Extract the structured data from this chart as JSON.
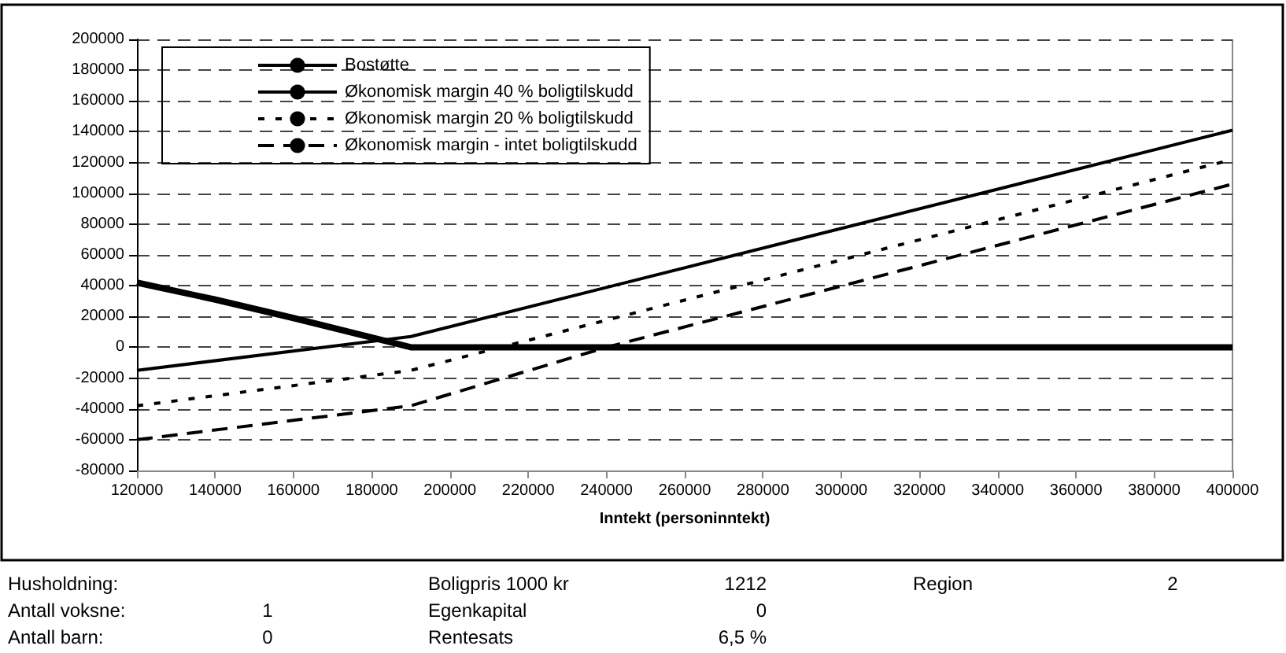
{
  "chart_data": {
    "type": "line",
    "xlabel": "Inntekt (personinntekt)",
    "series": [
      {
        "name": "Bostøtte",
        "color": "#000000",
        "line_style": "solid",
        "x": [
          120000,
          140000,
          160000,
          190000,
          400000
        ],
        "values": [
          42000,
          31000,
          19000,
          0,
          0
        ]
      },
      {
        "name": "Økonomisk margin 40 % boligtilskudd",
        "color": "#000000",
        "line_style": "solid",
        "x": [
          120000,
          190000,
          400000
        ],
        "values": [
          -15000,
          7000,
          141000
        ]
      },
      {
        "name": "Økonomisk margin 20 % boligtilskudd",
        "color": "#000000",
        "line_style": "dotted",
        "x": [
          120000,
          190000,
          400000
        ],
        "values": [
          -38000,
          -15000,
          122000
        ]
      },
      {
        "name": "Økonomisk margin - intet boligtilskudd",
        "color": "#000000",
        "line_style": "dashed",
        "x": [
          120000,
          190000,
          240000,
          400000
        ],
        "values": [
          -60000,
          -38000,
          0,
          106000
        ]
      }
    ],
    "xlim": [
      120000,
      400000
    ],
    "xticks": [
      120000,
      140000,
      160000,
      180000,
      200000,
      220000,
      240000,
      260000,
      280000,
      300000,
      320000,
      340000,
      360000,
      380000,
      400000
    ],
    "ylim": [
      -80000,
      200000
    ],
    "yticks": [
      -80000,
      -60000,
      -40000,
      -20000,
      0,
      20000,
      40000,
      60000,
      80000,
      100000,
      120000,
      140000,
      160000,
      180000,
      200000
    ],
    "grid": "y",
    "legend": "top left",
    "marker": "none",
    "annotations": [
      "Husholdning:",
      "Boligpris 1000 kr",
      "1212",
      "Region",
      "2",
      "Antall voksne:",
      "1",
      "Egenkapital",
      "0",
      "Antall barn:",
      "0",
      "Rentesats",
      "6,5 %"
    ]
  }
}
